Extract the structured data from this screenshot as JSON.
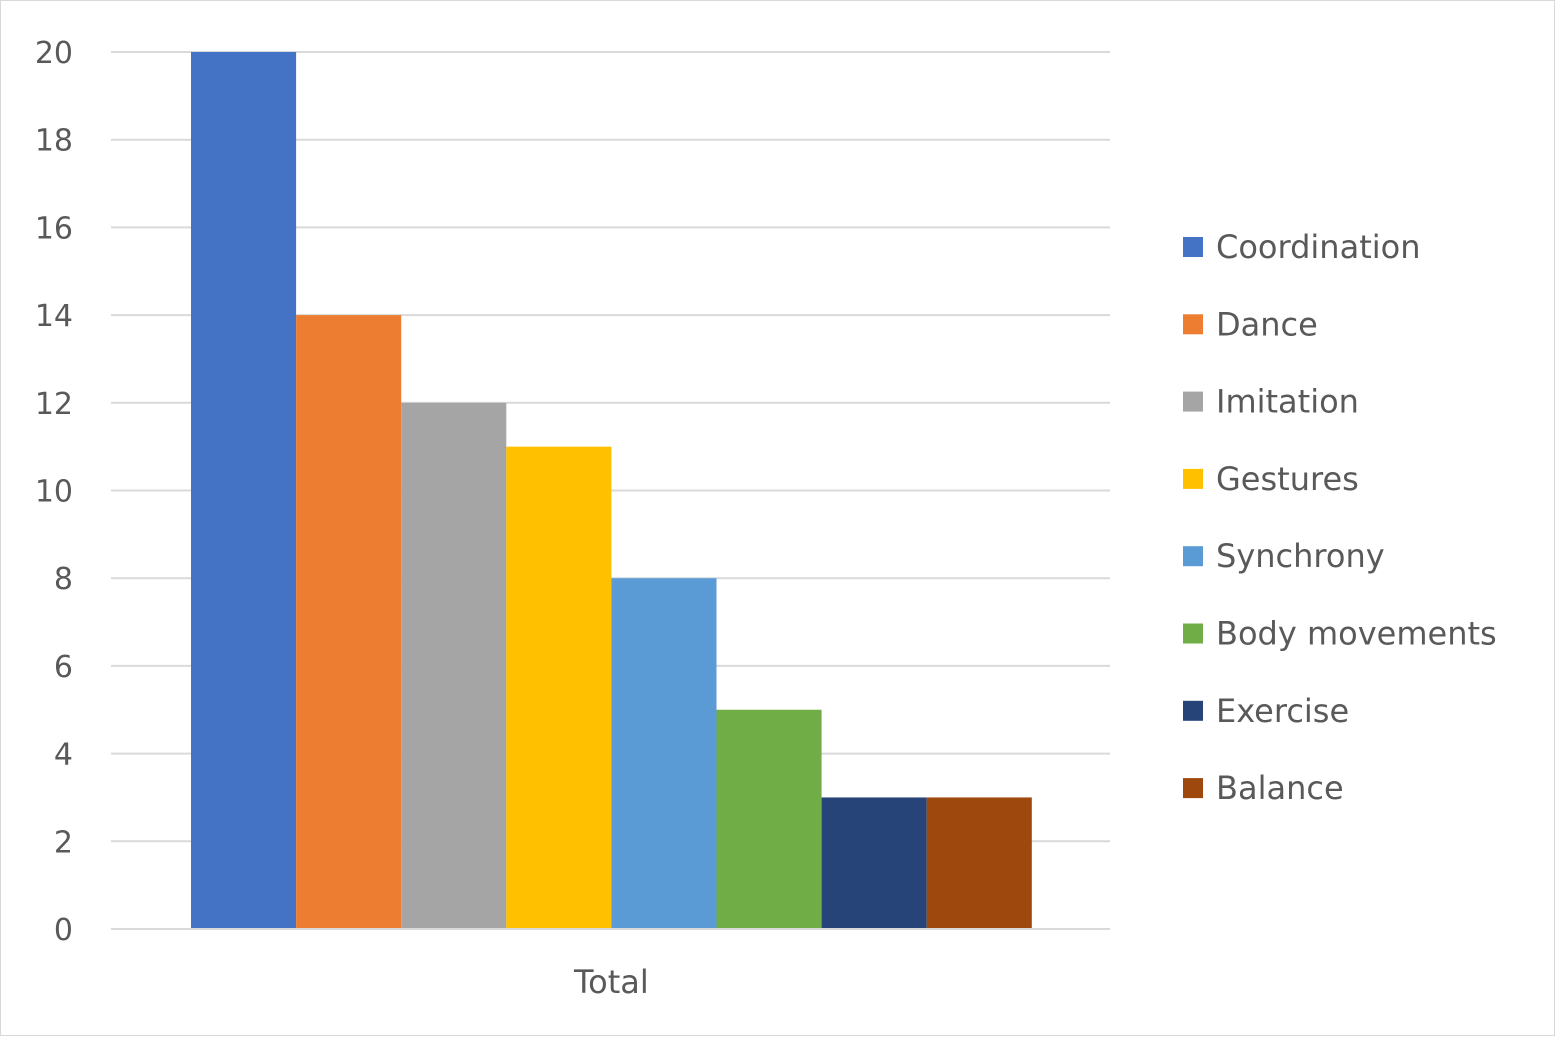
{
  "chart_data": {
    "type": "bar",
    "title": "",
    "xlabel": "",
    "ylabel": "",
    "categories": [
      "Total"
    ],
    "series": [
      {
        "name": "Coordination",
        "color": "#4472C4",
        "values": [
          20
        ]
      },
      {
        "name": "Dance",
        "color": "#ED7D31",
        "values": [
          14
        ]
      },
      {
        "name": "Imitation",
        "color": "#A5A5A5",
        "values": [
          12
        ]
      },
      {
        "name": "Gestures",
        "color": "#FFC000",
        "values": [
          11
        ]
      },
      {
        "name": "Synchrony",
        "color": "#5B9BD5",
        "values": [
          8
        ]
      },
      {
        "name": "Body movements",
        "color": "#70AD47",
        "values": [
          5
        ]
      },
      {
        "name": "Exercise",
        "color": "#264478",
        "values": [
          3
        ]
      },
      {
        "name": "Balance",
        "color": "#9E480E",
        "values": [
          3
        ]
      }
    ],
    "ylim": [
      0,
      20
    ],
    "yticks": [
      "0",
      "2",
      "4",
      "6",
      "8",
      "10",
      "12",
      "14",
      "16",
      "18",
      "20"
    ],
    "grid": true,
    "legend": "right"
  }
}
